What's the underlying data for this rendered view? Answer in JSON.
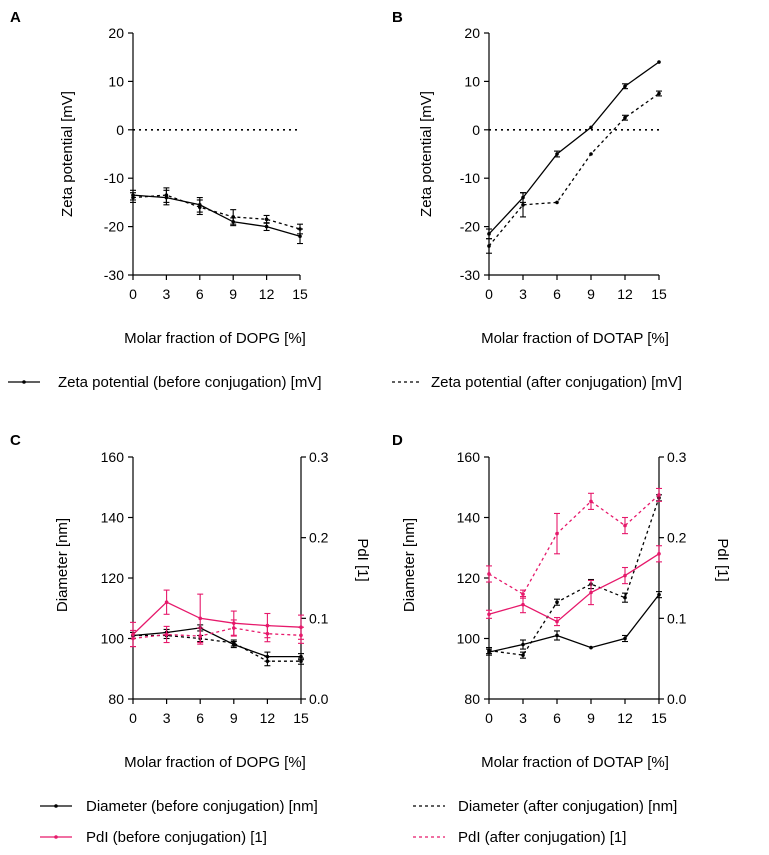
{
  "colors": {
    "black": "#000000",
    "pink": "#e6196b"
  },
  "chart_data": [
    {
      "id": "A",
      "panel_label": "A",
      "type": "line",
      "xlabel": "Molar fraction of DOPG [%]",
      "ylabel": "Zeta potential [mV]",
      "x": [
        0,
        3,
        6,
        9,
        12,
        15
      ],
      "xticks": [
        "0",
        "3",
        "6",
        "9",
        "12",
        "15"
      ],
      "ylim": [
        -30,
        20
      ],
      "yticks": [
        "20",
        "10",
        "0",
        "-10",
        "-20",
        "-30"
      ],
      "reference_line_y": 0,
      "series": [
        {
          "name": "Zeta potential (before conjugation) [mV]",
          "axis": "left",
          "color": "#000000",
          "dashed": false,
          "values": [
            -13.5,
            -14,
            -15.5,
            -19,
            -20,
            -22
          ],
          "errors": [
            1,
            1.5,
            1.5,
            0.8,
            0.8,
            1.5
          ]
        },
        {
          "name": "Zeta potential (after conjugation) [mV]",
          "axis": "left",
          "color": "#000000",
          "dashed": true,
          "values": [
            -14,
            -13.5,
            -16,
            -18,
            -18.5,
            -20.5
          ],
          "errors": [
            1,
            1.5,
            1.5,
            1.5,
            0.8,
            1
          ]
        }
      ]
    },
    {
      "id": "B",
      "panel_label": "B",
      "type": "line",
      "xlabel": "Molar fraction of DOTAP [%]",
      "ylabel": "Zeta potential [mV]",
      "x": [
        0,
        3,
        6,
        9,
        12,
        15
      ],
      "xticks": [
        "0",
        "3",
        "6",
        "9",
        "12",
        "15"
      ],
      "ylim": [
        -30,
        20
      ],
      "yticks": [
        "20",
        "10",
        "0",
        "-10",
        "-20",
        "-30"
      ],
      "reference_line_y": 0,
      "series": [
        {
          "name": "Zeta potential (before conjugation) [mV]",
          "axis": "left",
          "color": "#000000",
          "dashed": false,
          "values": [
            -21.5,
            -14,
            -5,
            0.5,
            9,
            14
          ],
          "errors": [
            1,
            1,
            0.6,
            0,
            0.5,
            0
          ]
        },
        {
          "name": "Zeta potential (after conjugation) [mV]",
          "axis": "left",
          "color": "#000000",
          "dashed": true,
          "values": [
            -24,
            -15.5,
            -15,
            -5,
            2.5,
            7.5
          ],
          "errors": [
            1.5,
            2.5,
            0,
            0,
            0.5,
            0.5
          ]
        }
      ]
    },
    {
      "id": "C",
      "panel_label": "C",
      "type": "line",
      "xlabel": "Molar fraction of DOPG [%]",
      "ylabel": "Diameter [nm]",
      "y2label": "PdI [1]",
      "x": [
        0,
        3,
        6,
        9,
        12,
        15
      ],
      "xticks": [
        "0",
        "3",
        "6",
        "9",
        "12",
        "15"
      ],
      "ylim": [
        80,
        160
      ],
      "yticks": [
        "160",
        "140",
        "120",
        "100",
        "80"
      ],
      "y2lim": [
        0,
        0.3
      ],
      "y2ticks": [
        "0.3",
        "0.2",
        "0.1",
        "0.0"
      ],
      "series": [
        {
          "name": "Diameter (before conjugation) [nm]",
          "axis": "left",
          "color": "#000000",
          "dashed": false,
          "values": [
            101,
            102,
            103.5,
            98,
            94,
            94
          ],
          "errors": [
            1,
            1,
            1,
            1,
            1.5,
            1
          ]
        },
        {
          "name": "Diameter (after conjugation) [nm]",
          "axis": "left",
          "color": "#000000",
          "dashed": true,
          "values": [
            101,
            101,
            100,
            98.5,
            92.5,
            92.5
          ],
          "errors": [
            1,
            1,
            1,
            1,
            1.5,
            1
          ]
        },
        {
          "name": "PdI (before conjugation) [1]",
          "axis": "right",
          "color": "#e6196b",
          "dashed": false,
          "values": [
            0.08,
            0.12,
            0.1,
            0.094,
            0.091,
            0.089
          ],
          "errors": [
            0.015,
            0.015,
            0.03,
            0.015,
            0.015,
            0.015
          ]
        },
        {
          "name": "PdI (after conjugation) [1]",
          "axis": "right",
          "color": "#e6196b",
          "dashed": true,
          "values": [
            0.075,
            0.08,
            0.078,
            0.088,
            0.081,
            0.079
          ],
          "errors": [
            0.01,
            0.01,
            0.01,
            0.01,
            0.01,
            0.01
          ]
        }
      ]
    },
    {
      "id": "D",
      "panel_label": "D",
      "type": "line",
      "xlabel": "Molar fraction of DOTAP [%]",
      "ylabel": "Diameter [nm]",
      "y2label": "PdI [1]",
      "x": [
        0,
        3,
        6,
        9,
        12,
        15
      ],
      "xticks": [
        "0",
        "3",
        "6",
        "9",
        "12",
        "15"
      ],
      "ylim": [
        80,
        160
      ],
      "yticks": [
        "160",
        "140",
        "120",
        "100",
        "80"
      ],
      "y2lim": [
        0,
        0.3
      ],
      "y2ticks": [
        "0.3",
        "0.2",
        "0.1",
        "0.0"
      ],
      "series": [
        {
          "name": "Diameter (before conjugation) [nm]",
          "axis": "left",
          "color": "#000000",
          "dashed": false,
          "values": [
            95.5,
            98,
            101,
            97,
            100,
            114.5
          ],
          "errors": [
            1,
            1.5,
            1.5,
            0,
            1,
            1
          ]
        },
        {
          "name": "Diameter (after conjugation) [nm]",
          "axis": "left",
          "color": "#000000",
          "dashed": true,
          "values": [
            96,
            94.5,
            112,
            118,
            113.5,
            146.5
          ],
          "errors": [
            1,
            1,
            1,
            1.5,
            1.5,
            1
          ]
        },
        {
          "name": "PdI (before conjugation) [1]",
          "axis": "right",
          "color": "#e6196b",
          "dashed": false,
          "values": [
            0.105,
            0.117,
            0.096,
            0.132,
            0.153,
            0.18
          ],
          "errors": [
            0.005,
            0.01,
            0.005,
            0.015,
            0.01,
            0.01
          ]
        },
        {
          "name": "PdI (after conjugation) [1]",
          "axis": "right",
          "color": "#e6196b",
          "dashed": true,
          "values": [
            0.155,
            0.13,
            0.205,
            0.245,
            0.215,
            0.253
          ],
          "errors": [
            0.01,
            0.005,
            0.025,
            0.01,
            0.01,
            0.008
          ]
        }
      ]
    }
  ],
  "legends": {
    "top": [
      {
        "label": "Zeta potential (before conjugation) [mV]",
        "color": "#000000",
        "dashed": false
      },
      {
        "label": "Zeta potential (after conjugation) [mV]",
        "color": "#000000",
        "dashed": true
      }
    ],
    "bottom": [
      {
        "label": "Diameter (before conjugation) [nm]",
        "color": "#000000",
        "dashed": false
      },
      {
        "label": "Diameter (after conjugation) [nm]",
        "color": "#000000",
        "dashed": true
      },
      {
        "label": "PdI (before conjugation) [1]",
        "color": "#e6196b",
        "dashed": false
      },
      {
        "label": "PdI (after conjugation) [1]",
        "color": "#e6196b",
        "dashed": true
      }
    ]
  }
}
